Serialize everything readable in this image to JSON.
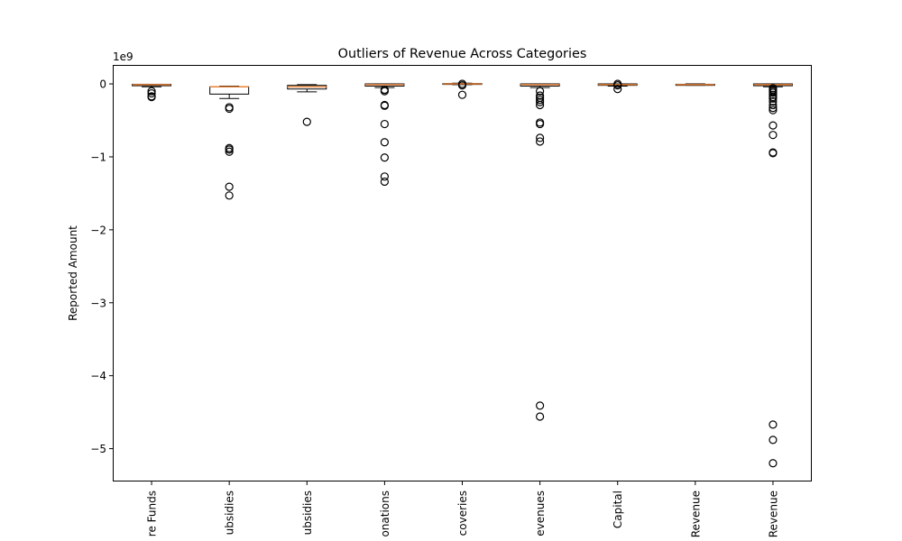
{
  "chart_data": {
    "type": "box",
    "title": "Outliers of Revenue Across Categories",
    "xlabel": "",
    "ylabel": "Reported Amount",
    "y_scale_label": "1e9",
    "ylim": [
      -5.45,
      0.26
    ],
    "yticks": [
      0,
      -1,
      -2,
      -3,
      -4,
      -5
    ],
    "ytick_labels": [
      "0",
      "−1",
      "−2",
      "−3",
      "−4",
      "−5"
    ],
    "grid": false,
    "colors": {
      "box": "#000000",
      "median": "#e8833a",
      "flier": "#000000"
    },
    "categories": [
      {
        "label": "re Funds",
        "box": {
          "whisker_low": -0.04,
          "q1": -0.025,
          "median": -0.01,
          "q3": -0.005,
          "whisker_high": -0.005
        },
        "outliers": [
          -0.1,
          -0.13,
          -0.17,
          -0.18
        ]
      },
      {
        "label": "ubsidies",
        "box": {
          "whisker_low": -0.2,
          "q1": -0.14,
          "median": -0.04,
          "q3": -0.04,
          "whisker_high": -0.03
        },
        "outliers": [
          -0.32,
          -0.34,
          -0.88,
          -0.9,
          -0.93,
          -1.41,
          -1.53
        ]
      },
      {
        "label": "ubsidies",
        "box": {
          "whisker_low": -0.11,
          "q1": -0.07,
          "median": -0.04,
          "q3": -0.02,
          "whisker_high": -0.01
        },
        "outliers": [
          -0.52
        ]
      },
      {
        "label": "onations",
        "box": {
          "whisker_low": -0.05,
          "q1": -0.03,
          "median": -0.01,
          "q3": 0.0,
          "whisker_high": 0.0
        },
        "outliers": [
          -0.08,
          -0.1,
          -0.29,
          -0.3,
          -0.55,
          -0.8,
          -1.01,
          -1.27,
          -1.34
        ]
      },
      {
        "label": "coveries",
        "box": {
          "whisker_low": -0.01,
          "q1": -0.005,
          "median": 0.0,
          "q3": 0.005,
          "whisker_high": 0.01
        },
        "outliers": [
          0.0,
          -0.02,
          -0.15
        ]
      },
      {
        "label": "evenues",
        "box": {
          "whisker_low": -0.05,
          "q1": -0.03,
          "median": -0.01,
          "q3": 0.0,
          "whisker_high": 0.0
        },
        "outliers": [
          -0.1,
          -0.16,
          -0.19,
          -0.22,
          -0.25,
          -0.29,
          -0.53,
          -0.55,
          -0.74,
          -0.79,
          -4.41,
          -4.56
        ]
      },
      {
        "label": "Capital",
        "box": {
          "whisker_low": -0.03,
          "q1": -0.02,
          "median": -0.01,
          "q3": 0.0,
          "whisker_high": 0.0
        },
        "outliers": [
          0.0,
          -0.02,
          -0.07
        ]
      },
      {
        "label": "Revenue",
        "box": {
          "whisker_low": -0.02,
          "q1": -0.02,
          "median": -0.01,
          "q3": -0.005,
          "whisker_high": 0.0
        },
        "outliers": []
      },
      {
        "label": "Revenue",
        "box": {
          "whisker_low": -0.04,
          "q1": -0.025,
          "median": -0.01,
          "q3": 0.0,
          "whisker_high": 0.0
        },
        "outliers": [
          -0.06,
          -0.08,
          -0.1,
          -0.12,
          -0.15,
          -0.18,
          -0.2,
          -0.24,
          -0.29,
          -0.33,
          -0.36,
          -0.57,
          -0.7,
          -0.94,
          -0.95,
          -4.67,
          -4.88,
          -5.2
        ]
      }
    ]
  }
}
